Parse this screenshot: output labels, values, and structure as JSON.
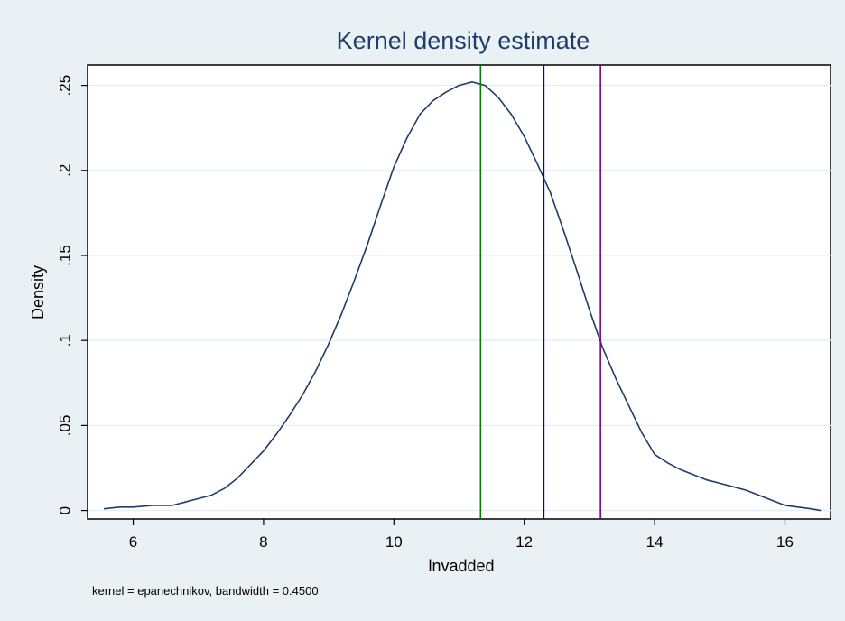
{
  "chart_data": {
    "type": "line",
    "title": "Kernel density estimate",
    "xlabel": "lnvadded",
    "ylabel": "Density",
    "note": "kernel = epanechnikov, bandwidth = 0.4500",
    "xlim": [
      5.3,
      16.7
    ],
    "ylim": [
      -0.005,
      0.262
    ],
    "x_ticks": [
      6,
      8,
      10,
      12,
      14,
      16
    ],
    "x_tick_labels": [
      "6",
      "8",
      "10",
      "12",
      "14",
      "16"
    ],
    "y_ticks": [
      0,
      0.05,
      0.1,
      0.15,
      0.2,
      0.25
    ],
    "y_tick_labels": [
      "0",
      ".05",
      ".1",
      ".15",
      ".2",
      ".25"
    ],
    "grid": true,
    "series": [
      {
        "color": "#1f3d6b",
        "x": [
          5.55,
          5.8,
          6.0,
          6.3,
          6.6,
          6.8,
          7.0,
          7.2,
          7.4,
          7.6,
          7.8,
          8.0,
          8.2,
          8.4,
          8.6,
          8.8,
          9.0,
          9.2,
          9.4,
          9.6,
          9.8,
          10.0,
          10.2,
          10.4,
          10.6,
          10.8,
          11.0,
          11.2,
          11.4,
          11.6,
          11.8,
          12.0,
          12.2,
          12.4,
          12.6,
          12.8,
          13.0,
          13.2,
          13.4,
          13.6,
          13.8,
          14.0,
          14.2,
          14.4,
          14.6,
          14.8,
          15.0,
          15.2,
          15.4,
          15.6,
          15.8,
          16.0,
          16.2,
          16.4,
          16.55
        ],
        "y": [
          0.001,
          0.002,
          0.002,
          0.003,
          0.003,
          0.005,
          0.007,
          0.009,
          0.013,
          0.019,
          0.027,
          0.035,
          0.045,
          0.056,
          0.068,
          0.082,
          0.098,
          0.116,
          0.136,
          0.157,
          0.18,
          0.202,
          0.219,
          0.233,
          0.241,
          0.246,
          0.25,
          0.252,
          0.25,
          0.243,
          0.233,
          0.22,
          0.204,
          0.187,
          0.165,
          0.142,
          0.118,
          0.096,
          0.078,
          0.062,
          0.046,
          0.033,
          0.028,
          0.024,
          0.021,
          0.018,
          0.016,
          0.014,
          0.012,
          0.009,
          0.006,
          0.003,
          0.002,
          0.001,
          0.0
        ]
      }
    ],
    "vlines": [
      {
        "x": 11.33,
        "color": "#008000"
      },
      {
        "x": 12.3,
        "color": "#0000e0"
      },
      {
        "x": 13.17,
        "color": "#800080"
      }
    ]
  }
}
